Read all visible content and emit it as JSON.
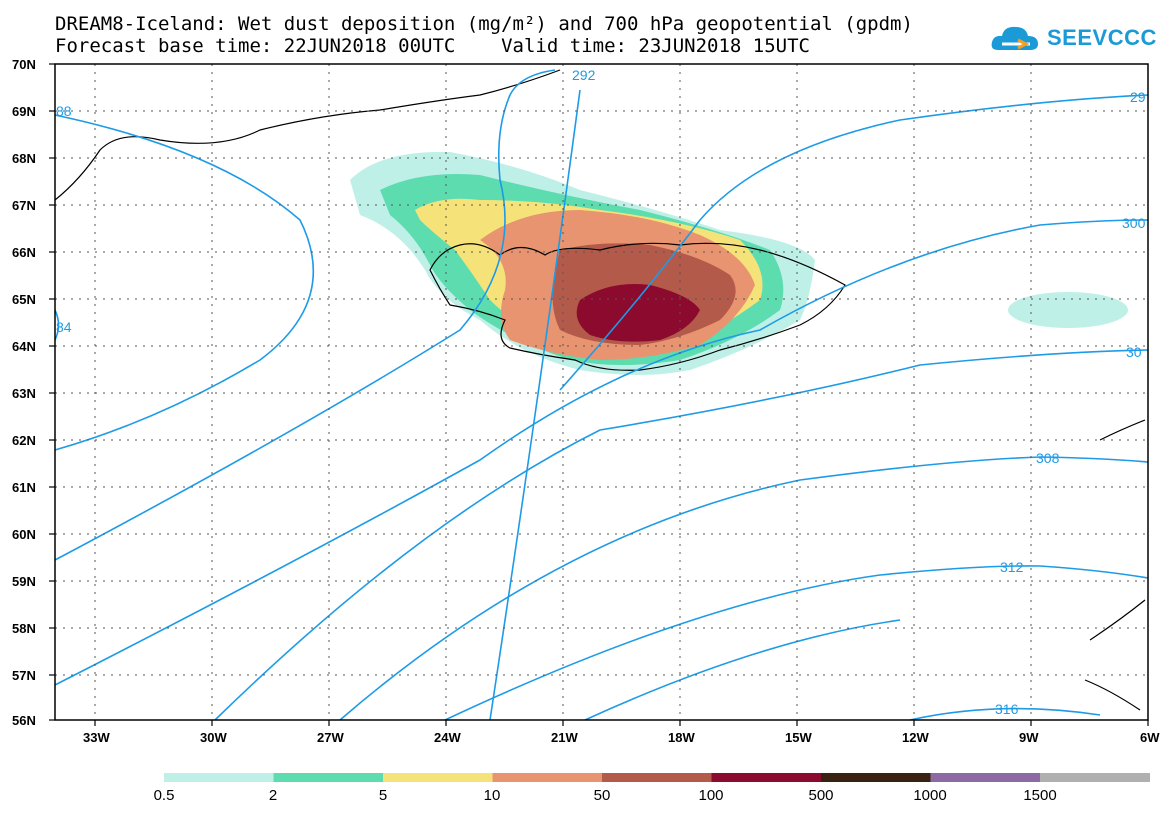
{
  "title": {
    "line1": "DREAM8-Iceland: Wet dust deposition (mg/m²) and 700 hPa geopotential (gpdm)",
    "line2": "Forecast base time: 22JUN2018 00UTC    Valid time: 23JUN2018 15UTC"
  },
  "logo": {
    "text": "SEEVCCC",
    "icon": "cloud-logo-icon"
  },
  "map": {
    "lat_labels": [
      "70N",
      "69N",
      "68N",
      "67N",
      "66N",
      "65N",
      "64N",
      "63N",
      "62N",
      "61N",
      "60N",
      "59N",
      "58N",
      "57N",
      "56N"
    ],
    "lon_labels": [
      "33W",
      "30W",
      "27W",
      "24W",
      "21W",
      "18W",
      "15W",
      "12W",
      "9W",
      "6W"
    ],
    "lon_range": [
      -35,
      -6
    ],
    "lat_range": [
      56,
      70
    ],
    "isoline_color": "#1e9be6",
    "isolines": [
      {
        "label": "292",
        "value": 292
      },
      {
        "label": "29",
        "value": 296
      },
      {
        "label": "300",
        "value": 300
      },
      {
        "label": "30",
        "value": 304
      },
      {
        "label": "308",
        "value": 308
      },
      {
        "label": "312",
        "value": 312
      },
      {
        "label": "316",
        "value": 316
      },
      {
        "label": "88",
        "value": 288
      },
      {
        "label": "84",
        "value": 284
      }
    ]
  },
  "legend": {
    "labels": [
      "0.5",
      "2",
      "5",
      "10",
      "50",
      "100",
      "500",
      "1000",
      "1500"
    ],
    "colors": [
      "#bff0e8",
      "#5ddcb0",
      "#f5e37a",
      "#e99470",
      "#b35a4a",
      "#8b0a2e",
      "#3a2212",
      "#8e6aa4",
      "#b0b0b0"
    ]
  }
}
